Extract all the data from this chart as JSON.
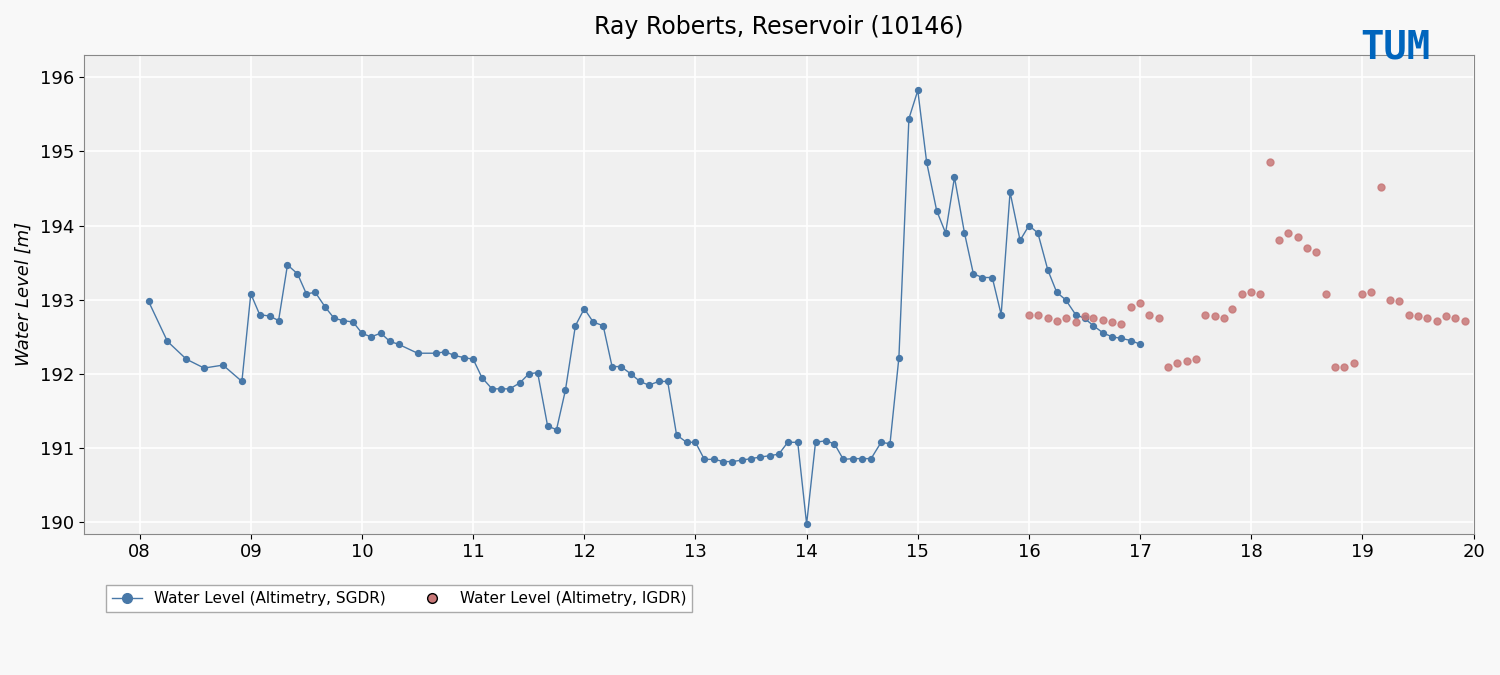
{
  "title": "Ray Roberts, Reservoir (10146)",
  "ylabel": "Water Level [m]",
  "xlabel": "",
  "xlim": [
    7.5,
    20.0
  ],
  "ylim": [
    189.85,
    196.3
  ],
  "xticks": [
    8,
    9,
    10,
    11,
    12,
    13,
    14,
    15,
    16,
    17,
    18,
    19,
    20
  ],
  "xtick_labels": [
    "08",
    "09",
    "10",
    "11",
    "12",
    "13",
    "14",
    "15",
    "16",
    "17",
    "18",
    "19",
    "20"
  ],
  "yticks": [
    190,
    191,
    192,
    193,
    194,
    195,
    196
  ],
  "bg_color": "#f0f0f0",
  "grid_color": "#ffffff",
  "line_color": "#4878a8",
  "sgdr_color": "#4878a8",
  "igdr_color": "#c87878",
  "legend_sgdr": "Water Level (Altimetry, SGDR)",
  "legend_igdr": "Water Level (Altimetry, IGDR)",
  "tum_color": "#0065bd",
  "sgdr_x": [
    8.08,
    8.25,
    8.42,
    8.58,
    8.75,
    8.92,
    9.0,
    9.08,
    9.17,
    9.25,
    9.33,
    9.42,
    9.5,
    9.58,
    9.67,
    9.75,
    9.83,
    9.92,
    10.0,
    10.08,
    10.17,
    10.25,
    10.33,
    10.5,
    10.67,
    10.75,
    10.83,
    10.92,
    11.0,
    11.08,
    11.17,
    11.25,
    11.33,
    11.42,
    11.5,
    11.58,
    11.67,
    11.75,
    11.83,
    11.92,
    12.0,
    12.08,
    12.17,
    12.25,
    12.33,
    12.42,
    12.5,
    12.58,
    12.67,
    12.75,
    12.83,
    12.92,
    13.0,
    13.08,
    13.17,
    13.25,
    13.33,
    13.42,
    13.5,
    13.58,
    13.67,
    13.75,
    13.83,
    13.92,
    14.0,
    14.08,
    14.17,
    14.25,
    14.33,
    14.42,
    14.5,
    14.58,
    14.67,
    14.75,
    14.83,
    14.92,
    15.0,
    15.08,
    15.17,
    15.25,
    15.33,
    15.42,
    15.5,
    15.58,
    15.67,
    15.75,
    15.83,
    15.92,
    16.0,
    16.08,
    16.17,
    16.25,
    16.33,
    16.42,
    16.5,
    16.58,
    16.67,
    16.75,
    16.83,
    16.92,
    17.0
  ],
  "sgdr_y": [
    192.98,
    192.44,
    192.2,
    192.08,
    192.12,
    191.9,
    193.08,
    192.8,
    192.78,
    192.72,
    193.47,
    193.35,
    193.08,
    193.1,
    192.9,
    192.75,
    192.72,
    192.7,
    192.55,
    192.5,
    192.55,
    192.44,
    192.4,
    192.28,
    192.28,
    192.3,
    192.25,
    192.22,
    192.2,
    191.95,
    191.8,
    191.8,
    191.8,
    191.88,
    192.0,
    192.02,
    191.3,
    191.25,
    191.78,
    192.65,
    192.88,
    192.7,
    192.65,
    192.1,
    192.1,
    192.0,
    191.9,
    191.85,
    191.9,
    191.9,
    191.18,
    191.08,
    191.08,
    190.85,
    190.85,
    190.82,
    190.82,
    190.84,
    190.86,
    190.88,
    190.9,
    190.92,
    191.08,
    191.08,
    189.98,
    191.08,
    191.1,
    191.06,
    190.85,
    190.86,
    190.86,
    190.86,
    191.08,
    191.06,
    192.22,
    195.44,
    195.82,
    194.85,
    194.2,
    193.9,
    194.65,
    193.9,
    193.35,
    193.3,
    193.3,
    192.8,
    194.45,
    193.8,
    194.0,
    193.9,
    193.4,
    193.1,
    193.0,
    192.8,
    192.75,
    192.65,
    192.55,
    192.5,
    192.48,
    192.45,
    192.4
  ],
  "igdr_x": [
    16.0,
    16.08,
    16.17,
    16.25,
    16.33,
    16.42,
    16.5,
    16.58,
    16.67,
    16.75,
    16.83,
    16.92,
    17.0,
    17.08,
    17.17,
    17.25,
    17.33,
    17.42,
    17.5,
    17.58,
    17.67,
    17.75,
    17.83,
    17.92,
    18.0,
    18.08,
    18.17,
    18.25,
    18.33,
    18.42,
    18.5,
    18.58,
    18.67,
    18.75,
    18.83,
    18.92,
    19.0,
    19.08,
    19.17,
    19.25,
    19.33,
    19.42,
    19.5,
    19.58,
    19.67,
    19.75,
    19.83,
    19.92
  ],
  "igdr_y": [
    192.8,
    192.8,
    192.75,
    192.72,
    192.75,
    192.7,
    192.78,
    192.75,
    192.73,
    192.7,
    192.68,
    192.9,
    192.95,
    192.8,
    192.75,
    192.1,
    192.15,
    192.18,
    192.2,
    192.8,
    192.78,
    192.75,
    192.88,
    193.08,
    193.1,
    193.08,
    194.85,
    193.8,
    193.9,
    193.85,
    193.7,
    193.65,
    193.08,
    192.1,
    192.1,
    192.15,
    193.08,
    193.1,
    194.52,
    193.0,
    192.98,
    192.8,
    192.78,
    192.75,
    192.72,
    192.78,
    192.75,
    192.72
  ]
}
